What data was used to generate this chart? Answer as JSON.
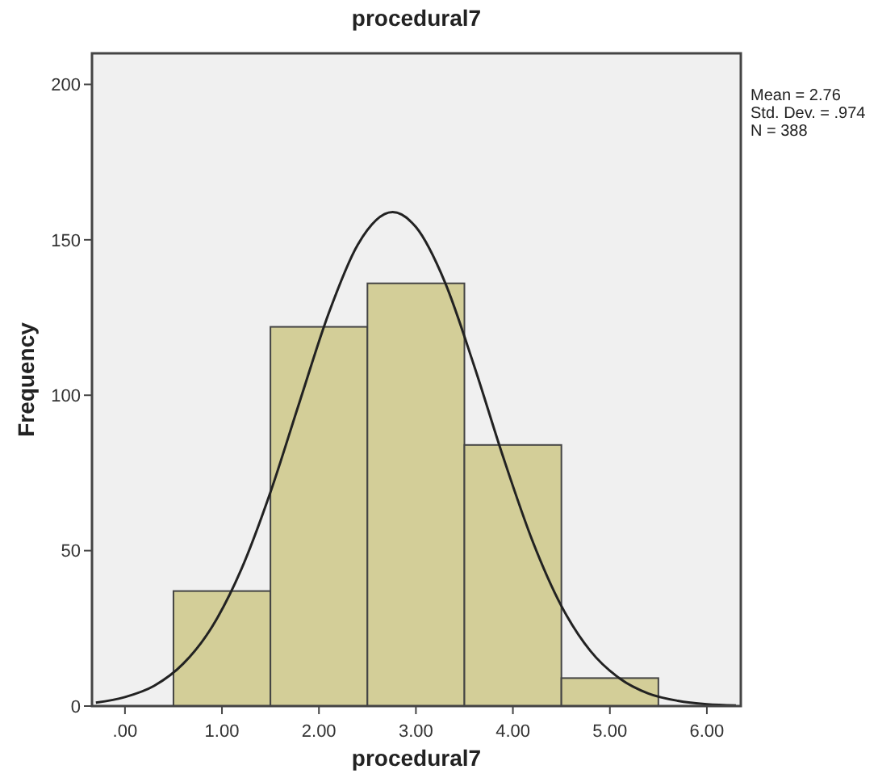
{
  "chart_data": {
    "type": "histogram",
    "title": "procedural7",
    "xlabel": "procedural7",
    "ylabel": "Frequency",
    "bins": [
      0.5,
      1.5,
      2.5,
      3.5,
      4.5,
      5.5
    ],
    "values": [
      37,
      122,
      136,
      84,
      9
    ],
    "color": "#d3ce98",
    "series": [
      {
        "type": "line",
        "color": "#222222",
        "x": [
          -0.3,
          0,
          0.3,
          0.6,
          0.9,
          1.2,
          1.5,
          1.8,
          2.1,
          2.4,
          2.76,
          3.0,
          3.3,
          3.6,
          3.9,
          4.2,
          4.5,
          4.8,
          5.1,
          5.4,
          5.7,
          6.0,
          6.3
        ],
        "values": [
          1.1,
          2.9,
          6.5,
          13.6,
          25.6,
          44,
          68.8,
          97.8,
          126.3,
          148.4,
          158.9,
          154.1,
          136.3,
          109.5,
          80.1,
          53.3,
          32.2,
          17.7,
          8.9,
          4,
          1.7,
          0.6,
          0.2
        ]
      }
    ],
    "xlim": [
      -0.34,
      6.35
    ],
    "xticks": [
      {
        "value": 0,
        "label": ".00"
      },
      {
        "value": 1,
        "label": "1.00"
      },
      {
        "value": 2,
        "label": "2.00"
      },
      {
        "value": 3,
        "label": "3.00"
      },
      {
        "value": 4,
        "label": "4.00"
      },
      {
        "value": 5,
        "label": "5.00"
      },
      {
        "value": 6,
        "label": "6.00"
      }
    ],
    "ylim": [
      0,
      210
    ],
    "yticks": [
      0,
      50,
      100,
      150,
      200
    ],
    "annotations": [
      "Mean = 2.76",
      "Std. Dev. = .974",
      "N = 388"
    ]
  }
}
